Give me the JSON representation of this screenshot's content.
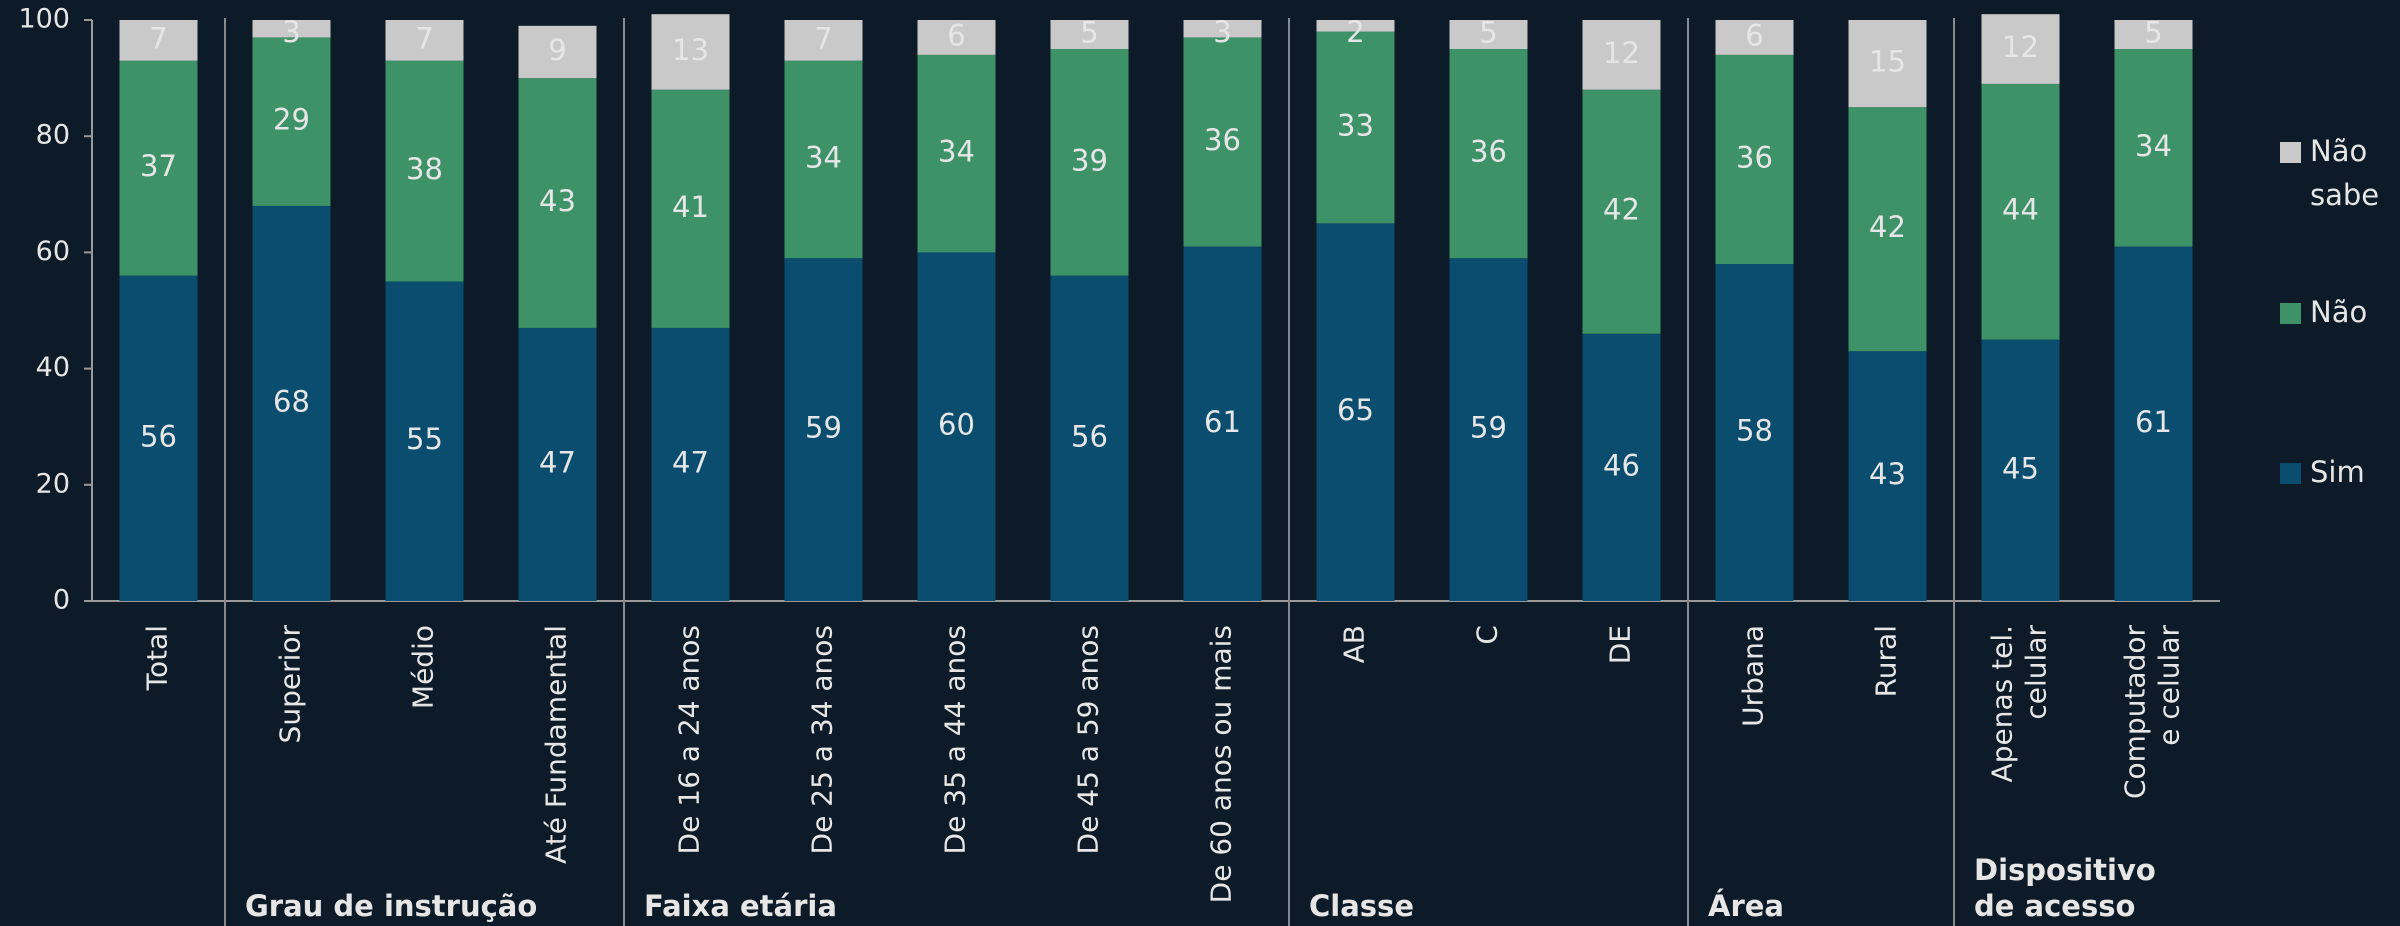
{
  "chart_data": {
    "type": "stacked_bar",
    "categories": [
      "Total",
      "Superior",
      "Médio",
      "Até Fundamental",
      "De 16 a 24 anos",
      "De 25 a 34 anos",
      "De 35 a 44 anos",
      "De 45 a 59 anos",
      "De 60 anos ou mais",
      "AB",
      "C",
      "DE",
      "Urbana",
      "Rural",
      [
        "Apenas tel.",
        "celular"
      ],
      [
        "Computador",
        "e celular"
      ]
    ],
    "groups": [
      {
        "name": [
          "Grau de instrução"
        ],
        "from": 1,
        "to": 3
      },
      {
        "name": [
          "Faixa etária"
        ],
        "from": 4,
        "to": 8
      },
      {
        "name": [
          "Classe"
        ],
        "from": 9,
        "to": 11
      },
      {
        "name": [
          "Área"
        ],
        "from": 12,
        "to": 13
      },
      {
        "name": [
          "Dispositivo",
          "de acesso"
        ],
        "from": 14,
        "to": 15
      }
    ],
    "series": [
      {
        "name": [
          "Sim"
        ],
        "color": "#0a4d6e",
        "values": [
          56,
          68,
          55,
          47,
          47,
          59,
          60,
          56,
          61,
          65,
          59,
          46,
          58,
          43,
          45,
          61
        ]
      },
      {
        "name": [
          "Não"
        ],
        "color": "#3e9268",
        "values": [
          37,
          29,
          38,
          43,
          41,
          34,
          34,
          39,
          36,
          33,
          36,
          42,
          36,
          42,
          44,
          34
        ]
      },
      {
        "name": [
          "Não",
          "sabe"
        ],
        "color": "#c9c9c9",
        "values": [
          7,
          3,
          7,
          9,
          13,
          7,
          6,
          5,
          3,
          2,
          5,
          12,
          6,
          15,
          12,
          5
        ]
      }
    ],
    "ylim": [
      0,
      100
    ],
    "yticks": [
      0,
      20,
      40,
      60,
      80,
      100
    ],
    "grid": false,
    "legend": "right"
  }
}
